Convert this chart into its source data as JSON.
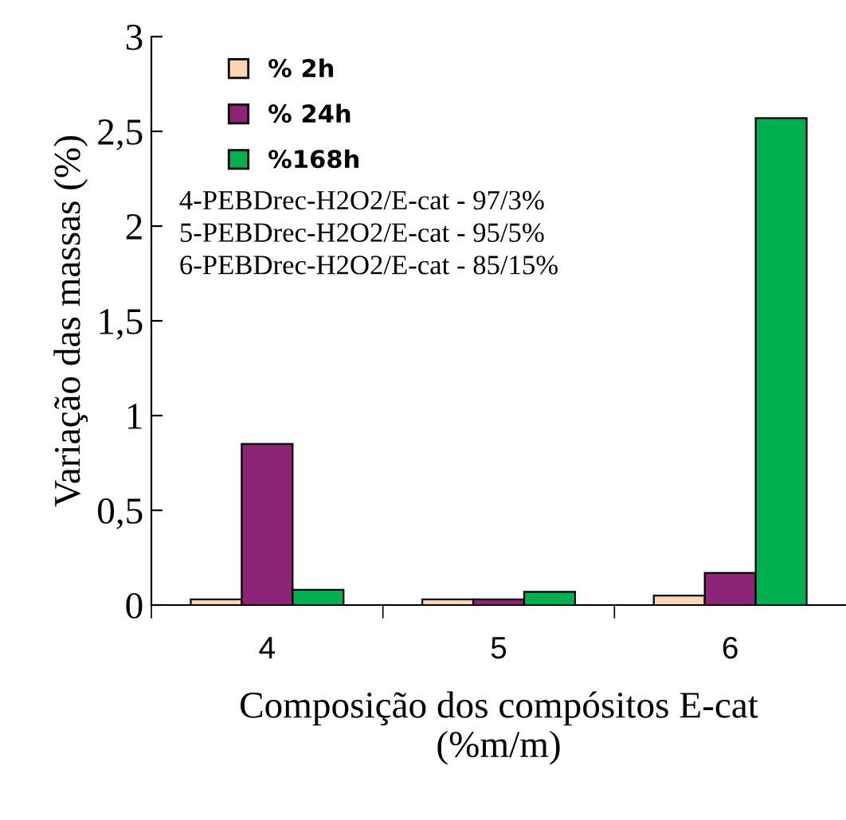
{
  "chart_data": {
    "type": "bar",
    "xlabel": "Composição dos compósitos E-cat\n(%m/m)",
    "ylabel": "Variação das massas (%)",
    "categories": [
      "4",
      "5",
      "6"
    ],
    "series": [
      {
        "name": "% 2h",
        "color": "#fcd5b4",
        "values": [
          0.03,
          0.03,
          0.05
        ]
      },
      {
        "name": "% 24h",
        "color": "#8b2476",
        "values": [
          0.85,
          0.03,
          0.17
        ]
      },
      {
        "name": "%168h",
        "color": "#00b050",
        "values": [
          0.08,
          0.07,
          2.57
        ]
      }
    ],
    "ylim": [
      0,
      3
    ],
    "yticks": [
      0,
      {
        "value": 0.5,
        "label": "0,5"
      },
      1,
      {
        "value": 1.5,
        "label": "1,5"
      },
      2,
      {
        "value": 2.5,
        "label": "2,5"
      },
      3
    ],
    "annotations": [
      "4-PEBDrec-H2O2/E-cat - 97/3%",
      "5-PEBDrec-H2O2/E-cat - 95/5%",
      "6-PEBDrec-H2O2/E-cat - 85/15%"
    ],
    "legend": "top left",
    "grid": false
  }
}
